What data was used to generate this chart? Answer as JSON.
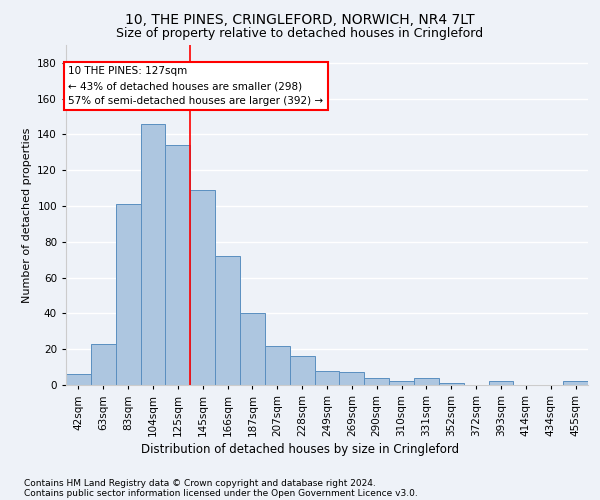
{
  "title1": "10, THE PINES, CRINGLEFORD, NORWICH, NR4 7LT",
  "title2": "Size of property relative to detached houses in Cringleford",
  "xlabel": "Distribution of detached houses by size in Cringleford",
  "ylabel": "Number of detached properties",
  "footer1": "Contains HM Land Registry data © Crown copyright and database right 2024.",
  "footer2": "Contains public sector information licensed under the Open Government Licence v3.0.",
  "categories": [
    "42sqm",
    "63sqm",
    "83sqm",
    "104sqm",
    "125sqm",
    "145sqm",
    "166sqm",
    "187sqm",
    "207sqm",
    "228sqm",
    "249sqm",
    "269sqm",
    "290sqm",
    "310sqm",
    "331sqm",
    "352sqm",
    "372sqm",
    "393sqm",
    "414sqm",
    "434sqm",
    "455sqm"
  ],
  "values": [
    6,
    23,
    101,
    146,
    134,
    109,
    72,
    40,
    22,
    16,
    8,
    7,
    4,
    2,
    4,
    1,
    0,
    2,
    0,
    0,
    2
  ],
  "bar_color": "#adc6e0",
  "bar_edge_color": "#5a8fc0",
  "vline_x": 4.5,
  "vline_color": "red",
  "annotation_text": "10 THE PINES: 127sqm\n← 43% of detached houses are smaller (298)\n57% of semi-detached houses are larger (392) →",
  "annotation_box_color": "white",
  "annotation_border_color": "red",
  "ylim": [
    0,
    190
  ],
  "yticks": [
    0,
    20,
    40,
    60,
    80,
    100,
    120,
    140,
    160,
    180
  ],
  "background_color": "#eef2f8",
  "plot_bg_color": "#eef2f8",
  "grid_color": "white",
  "title1_fontsize": 10,
  "title2_fontsize": 9,
  "xlabel_fontsize": 8.5,
  "ylabel_fontsize": 8,
  "tick_fontsize": 7.5,
  "footer_fontsize": 6.5,
  "annotation_fontsize": 7.5
}
